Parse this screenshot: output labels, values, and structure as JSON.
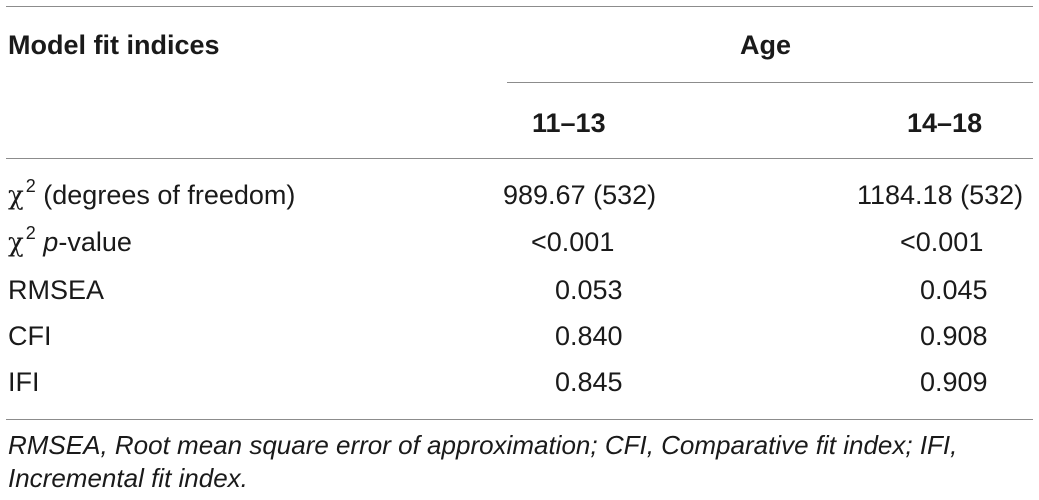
{
  "table": {
    "header": {
      "stub": "Model fit indices",
      "group": "Age",
      "columns": [
        "11–13",
        "14–18"
      ]
    },
    "rows": [
      {
        "label_symbol": "χ",
        "label_sup": "2",
        "label_rest": " (degrees of freedom)",
        "v1": "989.67 (532)",
        "v2": "1184.18 (532)"
      },
      {
        "label_symbol": "χ",
        "label_sup": "2",
        "label_italic": "p",
        "label_rest": "-value",
        "v1": "<0.001",
        "v2": "<0.001"
      },
      {
        "label": "RMSEA",
        "v1": "0.053",
        "v2": "0.045"
      },
      {
        "label": "CFI",
        "v1": "0.840",
        "v2": "0.908"
      },
      {
        "label": "IFI",
        "v1": "0.845",
        "v2": "0.909"
      }
    ],
    "footnote": "RMSEA, Root mean square error of approximation; CFI, Comparative fit index; IFI, Incremental fit index."
  }
}
